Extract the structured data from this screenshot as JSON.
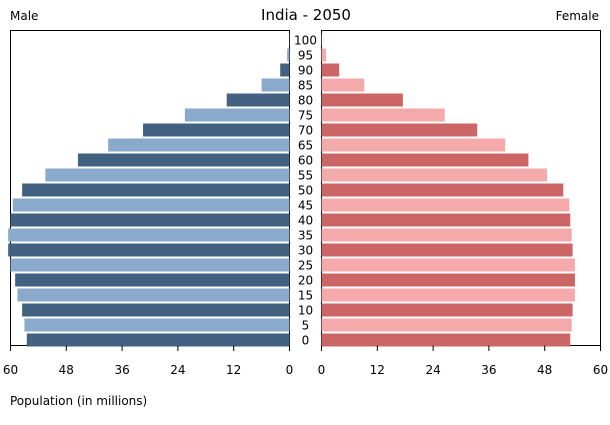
{
  "chart_data": {
    "type": "bar",
    "orientation": "horizontal",
    "title": "India - 2050",
    "left_label": "Male",
    "right_label": "Female",
    "xlabel": "Population (in millions)",
    "categories": [
      "0",
      "5",
      "10",
      "15",
      "20",
      "25",
      "30",
      "35",
      "40",
      "45",
      "50",
      "55",
      "60",
      "65",
      "70",
      "75",
      "80",
      "85",
      "90",
      "95",
      "100"
    ],
    "series": [
      {
        "name": "Male",
        "side": "left",
        "values": [
          56.5,
          57.0,
          57.5,
          58.5,
          59.0,
          60.0,
          60.5,
          60.5,
          60.0,
          59.5,
          57.5,
          52.5,
          45.5,
          39.0,
          31.5,
          22.5,
          13.5,
          6.0,
          2.0,
          0.5,
          0.1
        ],
        "colors": [
          "#436180",
          "#8aaacb"
        ]
      },
      {
        "name": "Female",
        "side": "right",
        "values": [
          53.5,
          53.8,
          54.0,
          54.5,
          54.5,
          54.5,
          54.0,
          53.8,
          53.5,
          53.3,
          52.0,
          48.5,
          44.5,
          39.5,
          33.5,
          26.5,
          17.5,
          9.2,
          3.8,
          1.0,
          0.1
        ],
        "colors": [
          "#cc6666",
          "#f4aaaa"
        ]
      }
    ],
    "x_ticks_left": [
      "60",
      "48",
      "36",
      "24",
      "12",
      "0"
    ],
    "x_ticks_right": [
      "0",
      "12",
      "24",
      "36",
      "48",
      "60"
    ],
    "xlim": [
      0,
      60
    ],
    "grid": false,
    "legend": "none"
  }
}
